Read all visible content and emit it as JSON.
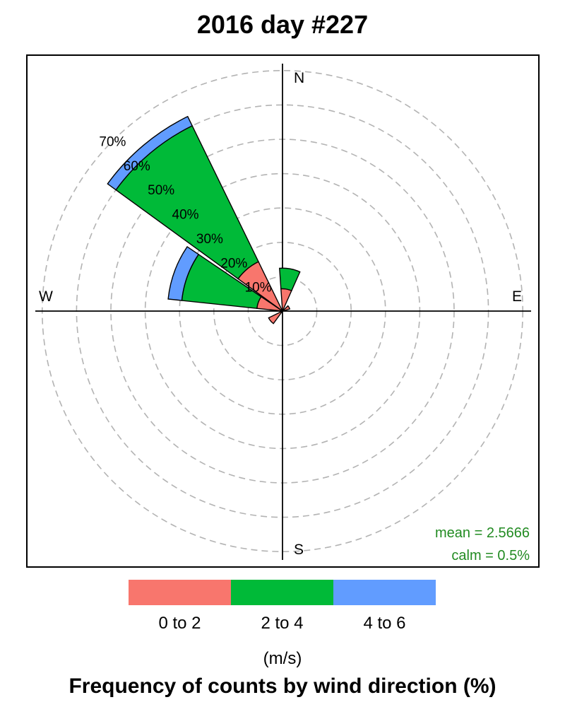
{
  "title": "2016 day #227",
  "chart_data": {
    "type": "windrose",
    "title": "2016 day #227",
    "compass_labels": {
      "north": "N",
      "south": "S",
      "east": "E",
      "west": "W"
    },
    "ring_labels": [
      "10%",
      "20%",
      "30%",
      "40%",
      "50%",
      "60%",
      "70%"
    ],
    "ring_values": [
      10,
      20,
      30,
      40,
      50,
      60,
      70
    ],
    "rmax": 70,
    "grid": true,
    "speed_bins": [
      {
        "label": "0 to 2",
        "color": "#F8766D"
      },
      {
        "label": "2 to 4",
        "color": "#00BA38"
      },
      {
        "label": "4 to 6",
        "color": "#619CFF"
      }
    ],
    "directions": [
      {
        "direction": 10,
        "cumulative": [
          6.5,
          12.5,
          12.5
        ]
      },
      {
        "direction": 60,
        "cumulative": [
          2.2,
          2.2,
          2.2
        ]
      },
      {
        "direction": 230,
        "cumulative": [
          4.5,
          4.5,
          4.5
        ]
      },
      {
        "direction": 290,
        "cumulative": [
          7.5,
          29.5,
          33.5
        ]
      },
      {
        "direction": 320,
        "cumulative": [
          16.0,
          60.0,
          63.0
        ]
      }
    ],
    "stats": {
      "mean": "mean = 2.5666",
      "calm": "calm = 0.5%"
    },
    "legend_position": "bottom",
    "units": "(m/s)",
    "footer_title": "Frequency of counts by wind direction (%)"
  },
  "legend": {
    "items": [
      {
        "label": "0 to 2",
        "color": "#F8766D"
      },
      {
        "label": "2 to 4",
        "color": "#00BA38"
      },
      {
        "label": "4 to 6",
        "color": "#619CFF"
      }
    ]
  },
  "units": "(m/s)",
  "footer_title": "Frequency of counts by wind direction (%)"
}
